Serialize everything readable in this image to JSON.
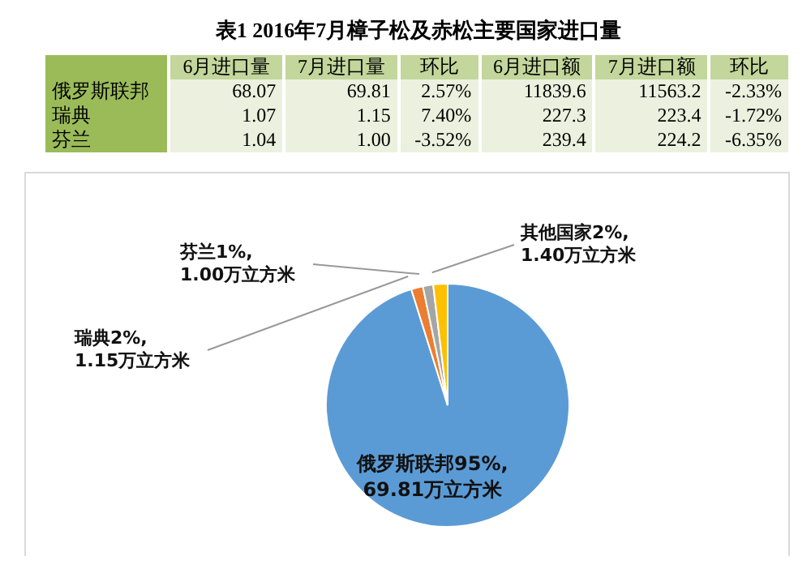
{
  "chart_data": [
    {
      "type": "other",
      "title": "表1  2016年7月樟子松及赤松主要国家进口量",
      "categories": [
        "6月进口量",
        "7月进口量",
        "环比",
        "6月进口额",
        "7月进口额",
        "环比"
      ],
      "y_categories": [
        "俄罗斯联邦",
        "瑞典",
        "芬兰"
      ],
      "cell_labels": [
        [
          "68.07",
          "69.81",
          "2.57%",
          "11839.6",
          "11563.2",
          "-2.33%"
        ],
        [
          "1.07",
          "1.15",
          "7.40%",
          "227.3",
          "223.4",
          "-1.72%"
        ],
        [
          "1.04",
          "1.00",
          "-3.52%",
          "239.4",
          "224.2",
          "-6.35%"
        ]
      ]
    },
    {
      "type": "pie",
      "categories": [
        "俄罗斯联邦",
        "瑞典",
        "芬兰",
        "其他国家"
      ],
      "values": [
        69.81,
        1.15,
        1.0,
        1.4
      ],
      "colors": [
        "#5b9bd5",
        "#ed7d31",
        "#a5a5a5",
        "#ffc000"
      ],
      "value_labels": [
        "95%,69.81万立方米",
        "2%,1.15万立方米",
        "1%,1.00万立方米",
        "2%,1.40万立方米"
      ]
    }
  ]
}
